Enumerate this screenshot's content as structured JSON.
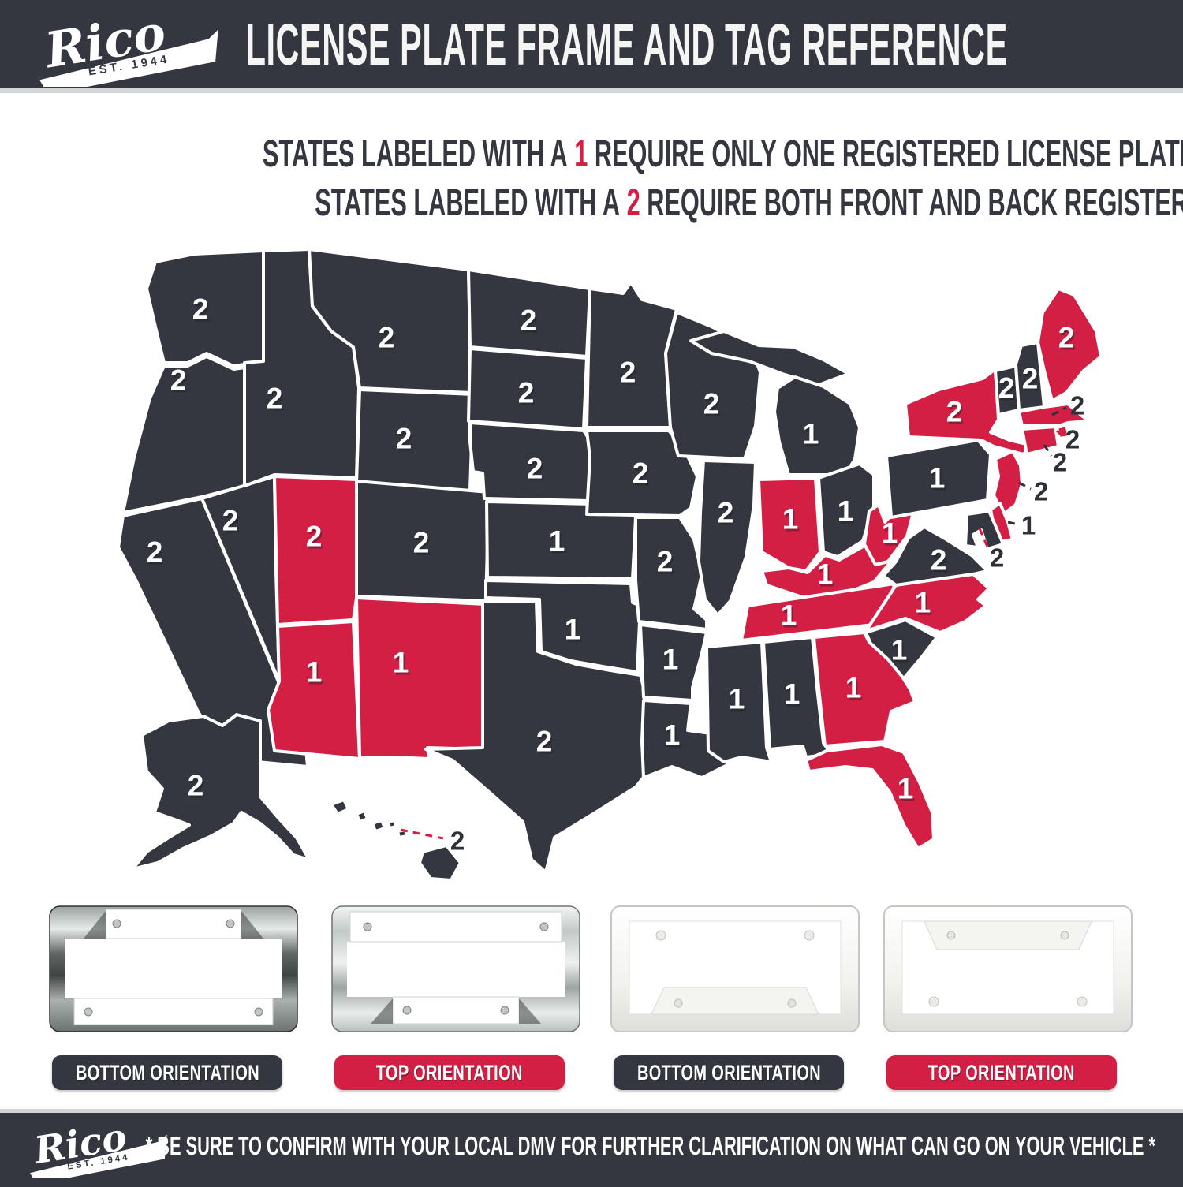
{
  "header": {
    "title": "LICENSE PLATE FRAME AND TAG REFERENCE",
    "logo": {
      "brand": "Rico",
      "est": "EST. 1944"
    }
  },
  "legend": {
    "line1": {
      "pre": "STATES LABELED WITH A",
      "num": "1",
      "post": "REQUIRE ONLY ONE REGISTERED LICENSE PLATE"
    },
    "line2": {
      "pre": "STATES LABELED WITH A",
      "num": "2",
      "post": "REQUIRE BOTH FRONT AND BACK REGISTERED LICENSE PLATES"
    }
  },
  "map": {
    "colors": {
      "dark": "#34373f",
      "red": "#d41f44",
      "border": "#ffffff"
    },
    "states": [
      {
        "abbr": "WA",
        "name": "Washington",
        "plates": "2",
        "color": "dark",
        "callout": false
      },
      {
        "abbr": "OR",
        "name": "Oregon",
        "plates": "2",
        "color": "dark",
        "callout": false
      },
      {
        "abbr": "CA",
        "name": "California",
        "plates": "2",
        "color": "dark",
        "callout": false
      },
      {
        "abbr": "NV",
        "name": "Nevada",
        "plates": "2",
        "color": "dark",
        "callout": false
      },
      {
        "abbr": "ID",
        "name": "Idaho",
        "plates": "2",
        "color": "dark",
        "callout": false
      },
      {
        "abbr": "MT",
        "name": "Montana",
        "plates": "2",
        "color": "dark",
        "callout": false
      },
      {
        "abbr": "WY",
        "name": "Wyoming",
        "plates": "2",
        "color": "dark",
        "callout": false
      },
      {
        "abbr": "UT",
        "name": "Utah",
        "plates": "2",
        "color": "red",
        "callout": false
      },
      {
        "abbr": "CO",
        "name": "Colorado",
        "plates": "2",
        "color": "dark",
        "callout": false
      },
      {
        "abbr": "AZ",
        "name": "Arizona",
        "plates": "1",
        "color": "red",
        "callout": false
      },
      {
        "abbr": "NM",
        "name": "New Mexico",
        "plates": "1",
        "color": "red",
        "callout": false
      },
      {
        "abbr": "ND",
        "name": "North Dakota",
        "plates": "2",
        "color": "dark",
        "callout": false
      },
      {
        "abbr": "SD",
        "name": "South Dakota",
        "plates": "2",
        "color": "dark",
        "callout": false
      },
      {
        "abbr": "NE",
        "name": "Nebraska",
        "plates": "2",
        "color": "dark",
        "callout": false
      },
      {
        "abbr": "KS",
        "name": "Kansas",
        "plates": "1",
        "color": "dark",
        "callout": false
      },
      {
        "abbr": "OK",
        "name": "Oklahoma",
        "plates": "1",
        "color": "dark",
        "callout": false
      },
      {
        "abbr": "TX",
        "name": "Texas",
        "plates": "2",
        "color": "dark",
        "callout": false
      },
      {
        "abbr": "MN",
        "name": "Minnesota",
        "plates": "2",
        "color": "dark",
        "callout": false
      },
      {
        "abbr": "IA",
        "name": "Iowa",
        "plates": "2",
        "color": "dark",
        "callout": false
      },
      {
        "abbr": "MO",
        "name": "Missouri",
        "plates": "2",
        "color": "dark",
        "callout": false
      },
      {
        "abbr": "AR",
        "name": "Arkansas",
        "plates": "1",
        "color": "dark",
        "callout": false
      },
      {
        "abbr": "LA",
        "name": "Louisiana",
        "plates": "1",
        "color": "dark",
        "callout": false
      },
      {
        "abbr": "WI",
        "name": "Wisconsin",
        "plates": "2",
        "color": "dark",
        "callout": false
      },
      {
        "abbr": "IL",
        "name": "Illinois",
        "plates": "2",
        "color": "dark",
        "callout": false
      },
      {
        "abbr": "MI",
        "name": "Michigan",
        "plates": "1",
        "color": "dark",
        "callout": false
      },
      {
        "abbr": "IN",
        "name": "Indiana",
        "plates": "1",
        "color": "red",
        "callout": false
      },
      {
        "abbr": "OH",
        "name": "Ohio",
        "plates": "1",
        "color": "dark",
        "callout": false
      },
      {
        "abbr": "KY",
        "name": "Kentucky",
        "plates": "1",
        "color": "red",
        "callout": false
      },
      {
        "abbr": "TN",
        "name": "Tennessee",
        "plates": "1",
        "color": "red",
        "callout": false
      },
      {
        "abbr": "MS",
        "name": "Mississippi",
        "plates": "1",
        "color": "dark",
        "callout": false
      },
      {
        "abbr": "AL",
        "name": "Alabama",
        "plates": "1",
        "color": "dark",
        "callout": false
      },
      {
        "abbr": "GA",
        "name": "Georgia",
        "plates": "1",
        "color": "red",
        "callout": false
      },
      {
        "abbr": "FL",
        "name": "Florida",
        "plates": "1",
        "color": "red",
        "callout": false
      },
      {
        "abbr": "SC",
        "name": "South Carolina",
        "plates": "1",
        "color": "dark",
        "callout": false
      },
      {
        "abbr": "NC",
        "name": "North Carolina",
        "plates": "1",
        "color": "red",
        "callout": false
      },
      {
        "abbr": "VA",
        "name": "Virginia",
        "plates": "2",
        "color": "dark",
        "callout": false
      },
      {
        "abbr": "WV",
        "name": "West Virginia",
        "plates": "1",
        "color": "red",
        "callout": false
      },
      {
        "abbr": "PA",
        "name": "Pennsylvania",
        "plates": "1",
        "color": "dark",
        "callout": false
      },
      {
        "abbr": "NY",
        "name": "New York",
        "plates": "2",
        "color": "red",
        "callout": false
      },
      {
        "abbr": "VT",
        "name": "Vermont",
        "plates": "2",
        "color": "dark",
        "callout": false
      },
      {
        "abbr": "NH",
        "name": "New Hampshire",
        "plates": "2",
        "color": "dark",
        "callout": false
      },
      {
        "abbr": "ME",
        "name": "Maine",
        "plates": "2",
        "color": "red",
        "callout": false
      },
      {
        "abbr": "MA",
        "name": "Massachusetts",
        "plates": "2",
        "color": "red",
        "callout": true,
        "callout_line": "dark"
      },
      {
        "abbr": "RI",
        "name": "Rhode Island",
        "plates": "2",
        "color": "red",
        "callout": true,
        "callout_line": "red"
      },
      {
        "abbr": "CT",
        "name": "Connecticut",
        "plates": "2",
        "color": "red",
        "callout": true,
        "callout_line": "dark"
      },
      {
        "abbr": "NJ",
        "name": "New Jersey",
        "plates": "2",
        "color": "red",
        "callout": true,
        "callout_line": "dark"
      },
      {
        "abbr": "DE",
        "name": "Delaware",
        "plates": "1",
        "color": "red",
        "callout": true,
        "callout_line": "dark"
      },
      {
        "abbr": "MD",
        "name": "Maryland",
        "plates": "2",
        "color": "dark",
        "callout": true,
        "callout_line": "red"
      },
      {
        "abbr": "AK",
        "name": "Alaska",
        "plates": "2",
        "color": "dark",
        "callout": false
      },
      {
        "abbr": "HI",
        "name": "Hawaii",
        "plates": "2",
        "color": "dark",
        "callout": true,
        "callout_line": "red"
      }
    ]
  },
  "frames": [
    {
      "material": "chrome",
      "orientation": "bottom",
      "label": "BOTTOM ORIENTATION",
      "label_style": "dark"
    },
    {
      "material": "chrome",
      "orientation": "top",
      "label": "TOP ORIENTATION",
      "label_style": "red"
    },
    {
      "material": "white-plastic",
      "orientation": "bottom",
      "label": "BOTTOM ORIENTATION",
      "label_style": "dark"
    },
    {
      "material": "white-plastic",
      "orientation": "top",
      "label": "TOP ORIENTATION",
      "label_style": "red"
    }
  ],
  "footer": {
    "note": "* BE SURE TO CONFIRM WITH YOUR LOCAL DMV FOR FURTHER CLARIFICATION ON WHAT CAN GO ON YOUR VEHICLE *"
  }
}
